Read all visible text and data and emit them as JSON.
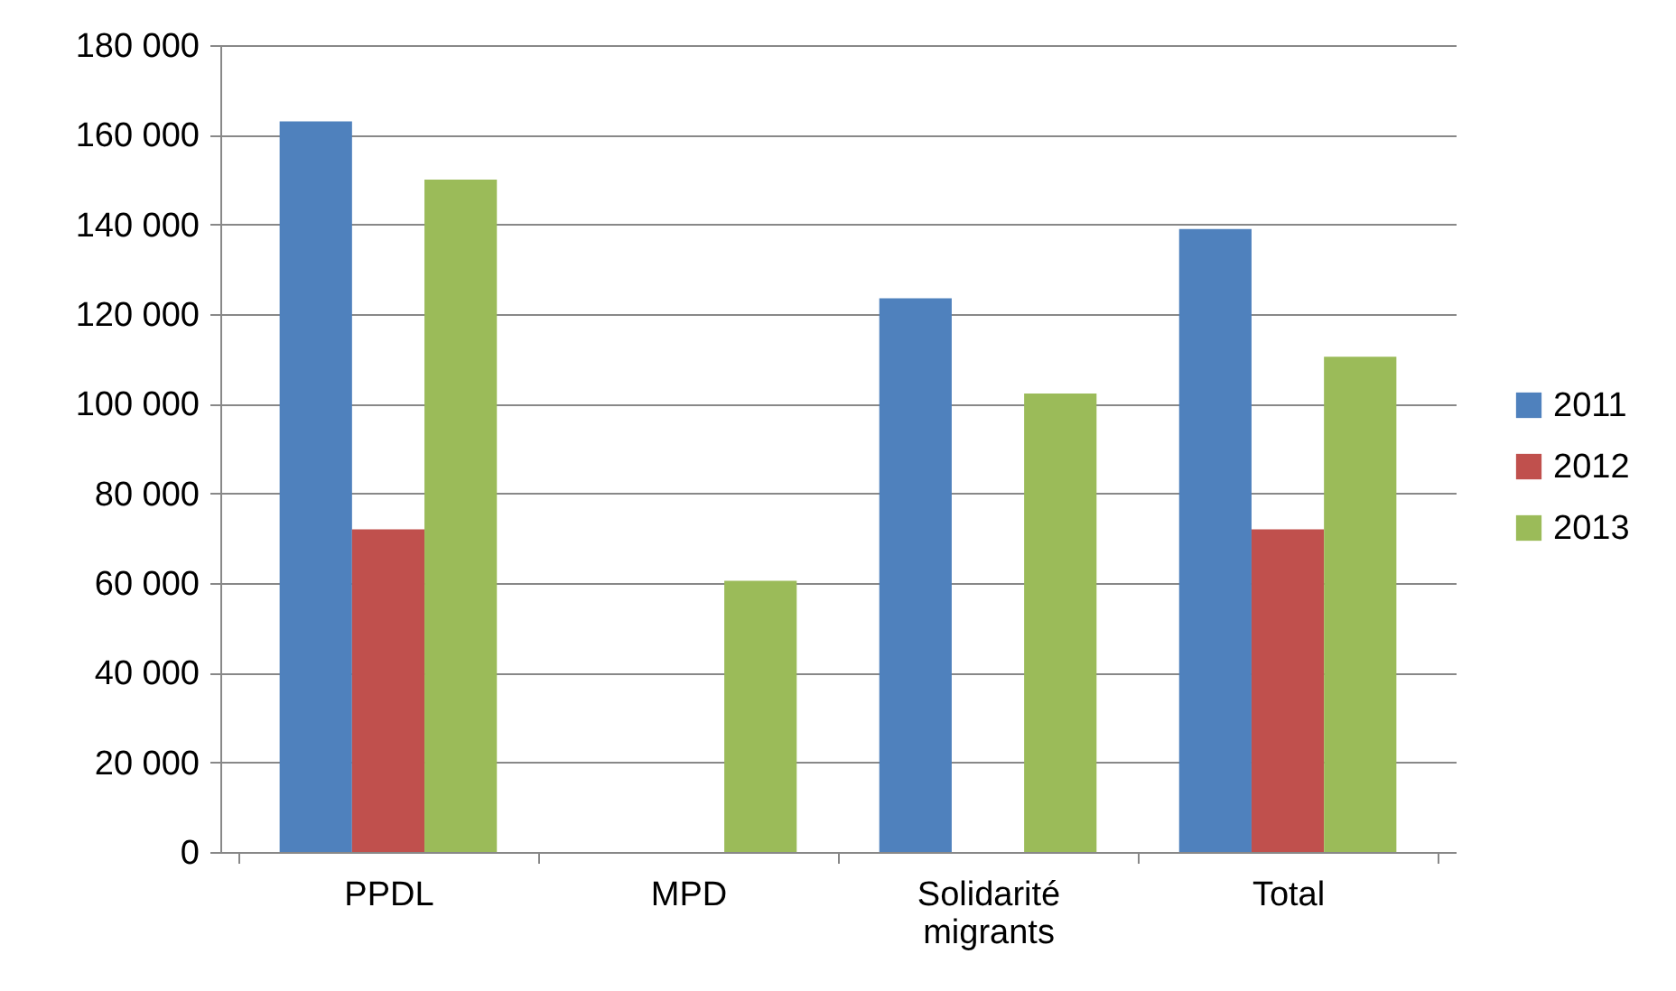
{
  "chart_data": {
    "type": "bar",
    "categories": [
      "PPDL",
      "MPD",
      "Solidarité migrants",
      "Total"
    ],
    "series": [
      {
        "name": "2011",
        "color": "#4f81bd",
        "values": [
          163000,
          null,
          123500,
          139000
        ]
      },
      {
        "name": "2012",
        "color": "#c0504d",
        "values": [
          72000,
          null,
          null,
          72000
        ]
      },
      {
        "name": "2013",
        "color": "#9bbb59",
        "values": [
          150000,
          60500,
          102300,
          110500
        ]
      }
    ],
    "ylim": [
      0,
      180000
    ],
    "yticks": [
      0,
      {
        "value": 20000,
        "label": "20 000"
      },
      {
        "value": 40000,
        "label": "40 000"
      },
      {
        "value": 60000,
        "label": "60 000"
      },
      {
        "value": 80000,
        "label": "80 000"
      },
      {
        "value": 100000,
        "label": "100 000"
      },
      {
        "value": 120000,
        "label": "120 000"
      },
      {
        "value": 140000,
        "label": "140 000"
      },
      {
        "value": 160000,
        "label": "160 000"
      },
      {
        "value": 180000,
        "label": "180 000"
      }
    ],
    "grid": "y",
    "legend": "right"
  }
}
